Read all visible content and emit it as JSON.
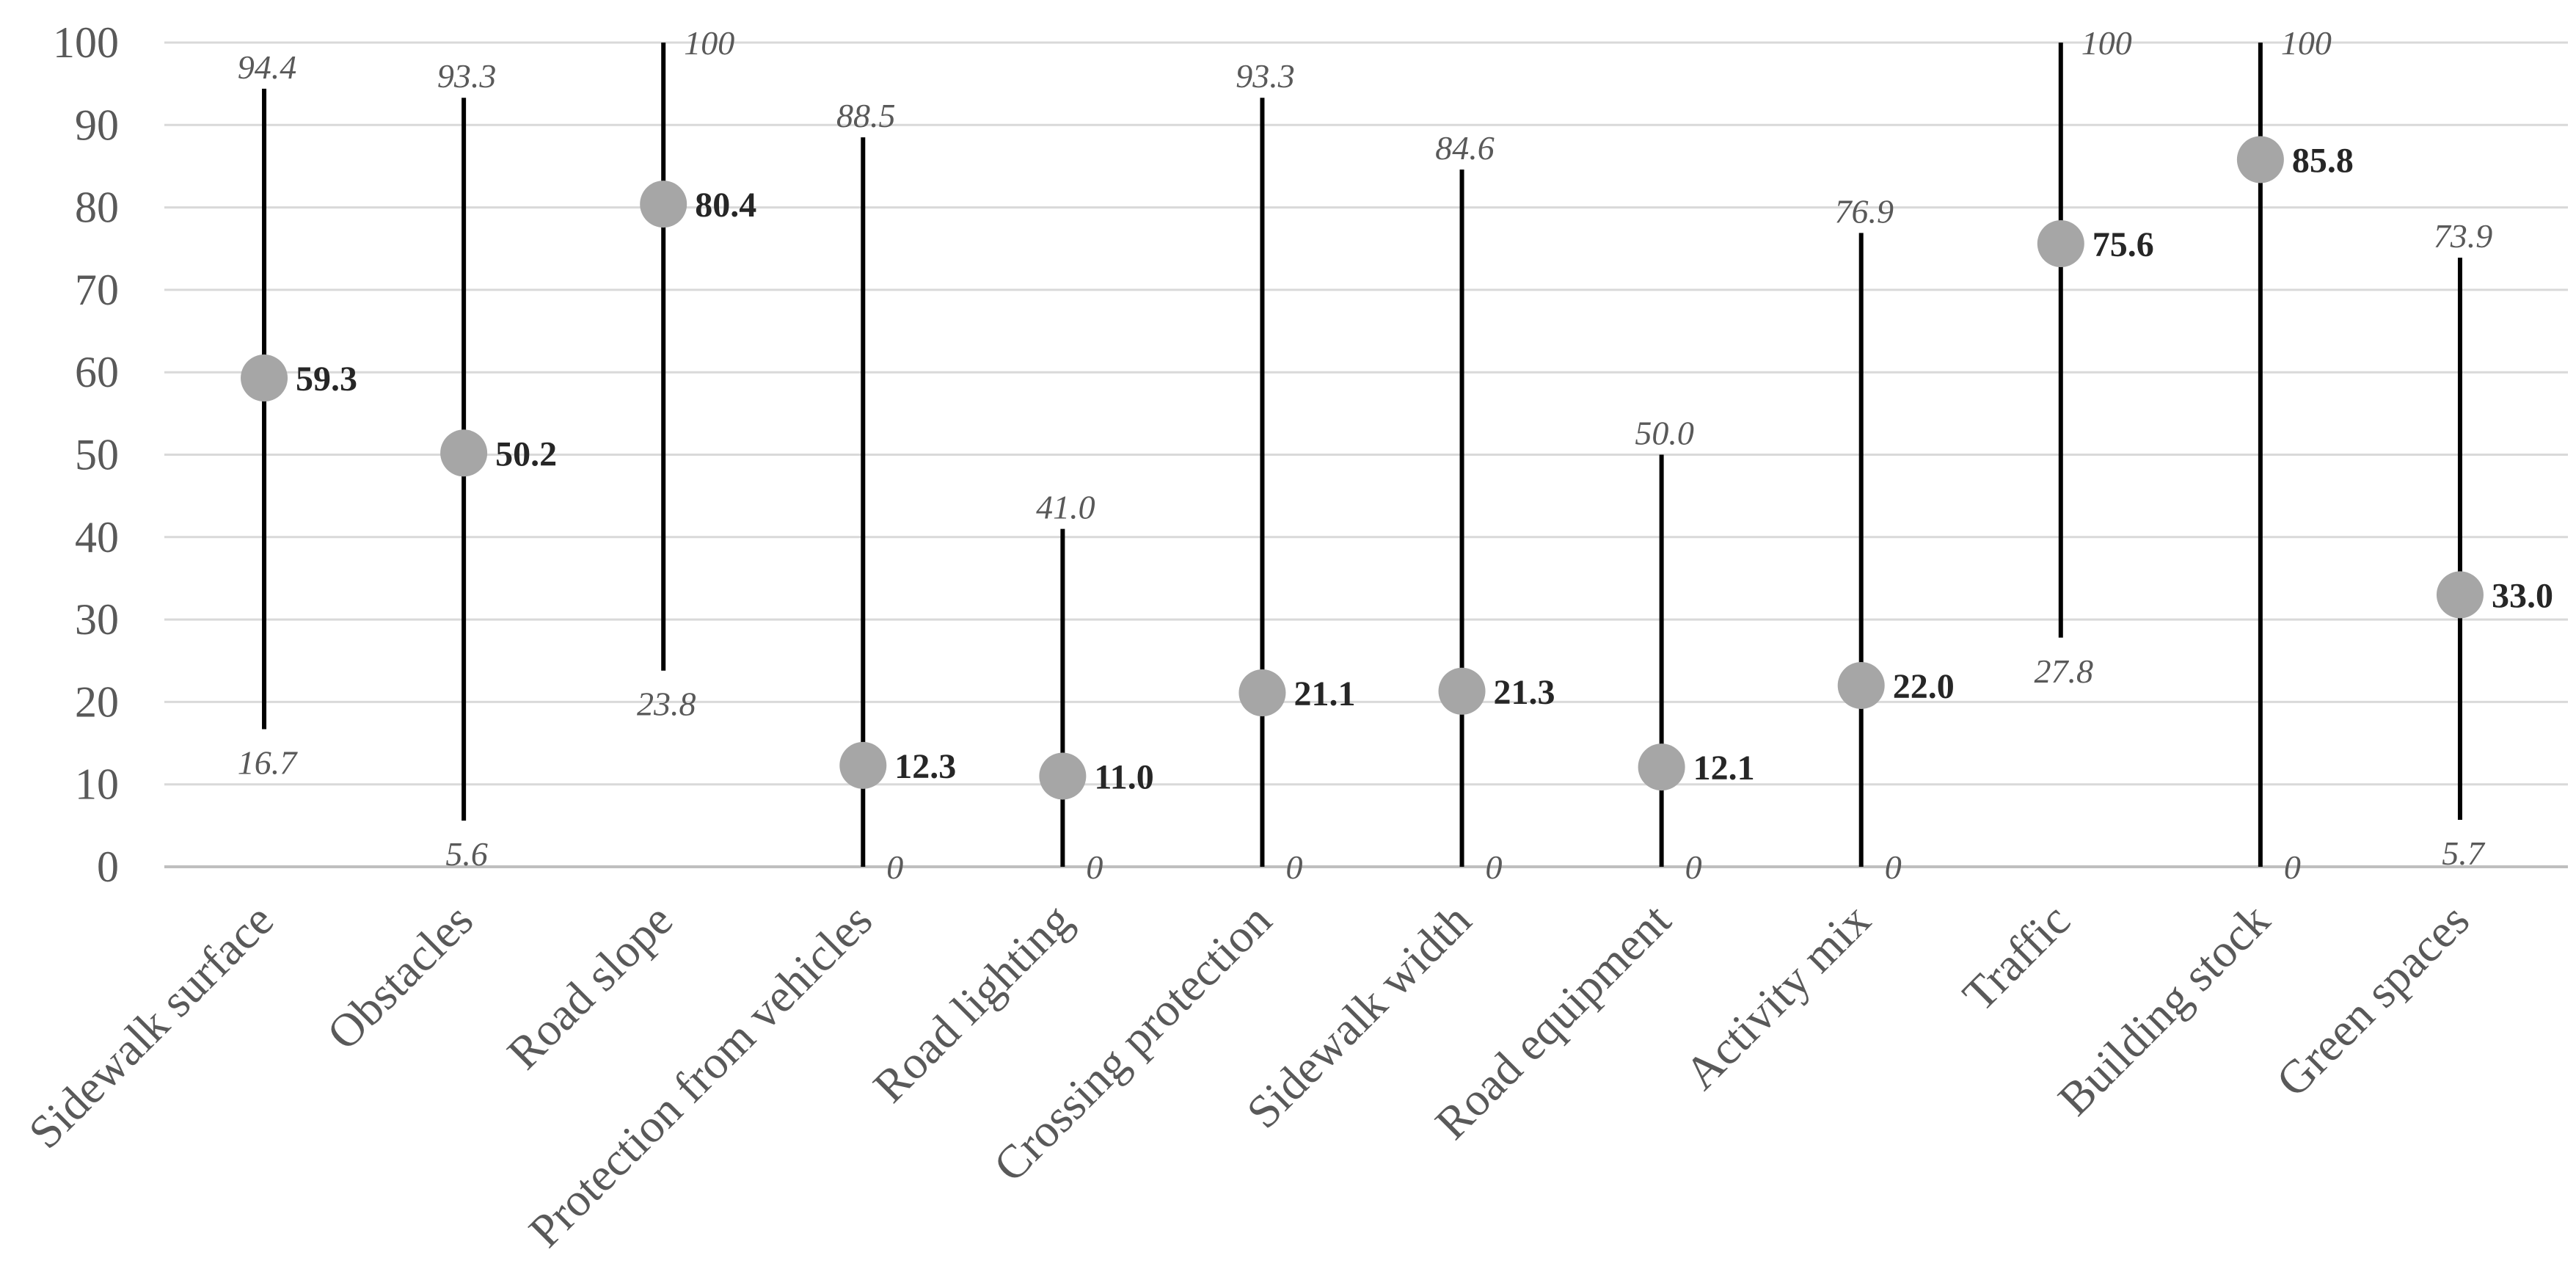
{
  "chart_data": {
    "type": "scatter",
    "categories": [
      "Sidewalk surface",
      "Obstacles",
      "Road slope",
      "Protection from vehicles",
      "Road lighting",
      "Crossing protection",
      "Sidewalk width",
      "Road equipment",
      "Activity mix",
      "Traffic",
      "Building stock",
      "Green spaces"
    ],
    "values": [
      59.3,
      50.2,
      80.4,
      12.3,
      11.0,
      21.1,
      21.3,
      12.1,
      22.0,
      75.6,
      85.8,
      33.0
    ],
    "high": [
      94.4,
      93.3,
      100,
      88.5,
      41.0,
      93.3,
      84.6,
      50.0,
      76.9,
      100,
      100,
      73.9
    ],
    "low": [
      16.7,
      5.6,
      23.8,
      0,
      0,
      0,
      0,
      0,
      0,
      27.8,
      0,
      5.7
    ],
    "ylim": [
      0,
      100
    ],
    "yticks": [
      0,
      10,
      20,
      30,
      40,
      50,
      60,
      70,
      80,
      90,
      100
    ],
    "grid": true,
    "colors": {
      "marker": "#a6a6a6",
      "range_line": "#000000",
      "gridline": "#d9d9d9",
      "axis_line": "#bfbfbf",
      "axis_text": "#595959",
      "range_label": "#595959",
      "value_label": "#262626"
    }
  }
}
